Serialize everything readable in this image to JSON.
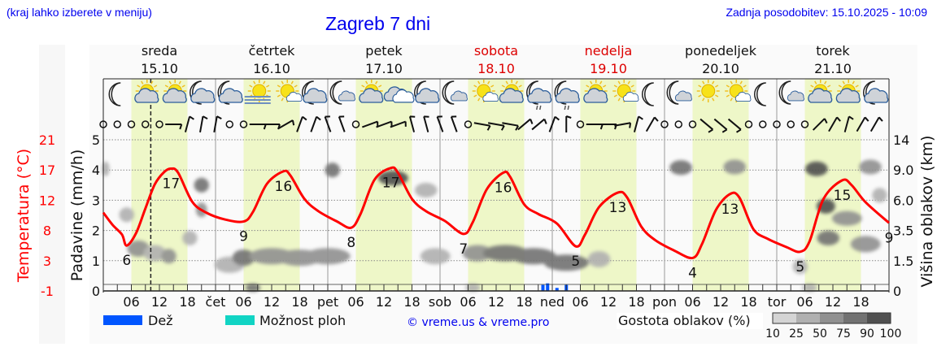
{
  "header": {
    "hint": "(kraj lahko izberete v meniju)",
    "title": "Zagreb 7 dni",
    "updated": "Zadnja posodobitev: 15.10.2025 - 10:09"
  },
  "colors": {
    "temperature": "#ff0000",
    "rain": "#0055ff",
    "showers": "#11d4c4",
    "daylight": "#eef7c8",
    "weekend": "#dd0000",
    "title": "#0000ee"
  },
  "chart_data": {
    "type": "meteogram",
    "days": [
      {
        "name": "sreda",
        "date": "15.10",
        "abbr": "",
        "weekend": false
      },
      {
        "name": "četrtek",
        "date": "16.10",
        "abbr": "čet",
        "weekend": false
      },
      {
        "name": "petek",
        "date": "17.10",
        "abbr": "pet",
        "weekend": false
      },
      {
        "name": "sobota",
        "date": "18.10",
        "abbr": "sob",
        "weekend": true
      },
      {
        "name": "nedelja",
        "date": "19.10",
        "abbr": "ned",
        "weekend": true
      },
      {
        "name": "ponedeljek",
        "date": "20.10",
        "abbr": "pon",
        "weekend": false
      },
      {
        "name": "torek",
        "date": "21.10",
        "abbr": "tor",
        "weekend": false
      }
    ],
    "hour_ticks": [
      "06",
      "12",
      "18"
    ],
    "now": "2025-10-15T10:09",
    "left_axis": {
      "label": "Temperatura (°C)",
      "ticks": [
        "-1",
        "3",
        "8",
        "12",
        "17",
        "21"
      ],
      "range": [
        -1,
        21
      ]
    },
    "precip_axis": {
      "label": "Padavine (mm/h)",
      "ticks": [
        "0",
        "1",
        "2",
        "3",
        "4",
        "5"
      ],
      "range": [
        0,
        5
      ]
    },
    "right_axis": {
      "label": "Višina oblakov (km)",
      "ticks": [
        "0",
        "1.5",
        "3.5",
        "6.0",
        "9.0",
        "14"
      ],
      "values": [
        0,
        1.5,
        3.5,
        6.0,
        9.0,
        14
      ]
    },
    "temperature": [
      [
        "2025-10-15T00:00",
        10.4
      ],
      [
        "2025-10-15T02:00",
        8.6
      ],
      [
        "2025-10-15T04:00",
        7.2
      ],
      [
        "2025-10-15T05:00",
        5.6
      ],
      [
        "2025-10-15T07:00",
        7.4
      ],
      [
        "2025-10-15T09:00",
        11
      ],
      [
        "2025-10-15T11:00",
        14.5
      ],
      [
        "2025-10-15T13:00",
        16.3
      ],
      [
        "2025-10-15T14:30",
        16.8
      ],
      [
        "2025-10-15T16:00",
        16.2
      ],
      [
        "2025-10-15T19:00",
        12
      ],
      [
        "2025-10-15T22:00",
        10.4
      ],
      [
        "2025-10-16T02:00",
        9.4
      ],
      [
        "2025-10-16T06:00",
        9.1
      ],
      [
        "2025-10-16T08:00",
        10.5
      ],
      [
        "2025-10-16T11:00",
        14.6
      ],
      [
        "2025-10-16T14:30",
        16.4
      ],
      [
        "2025-10-16T16:00",
        15.8
      ],
      [
        "2025-10-16T19:00",
        12.4
      ],
      [
        "2025-10-16T22:00",
        10.6
      ],
      [
        "2025-10-17T02:00",
        9.1
      ],
      [
        "2025-10-17T05:00",
        8.2
      ],
      [
        "2025-10-17T07:00",
        10.2
      ],
      [
        "2025-10-17T10:00",
        15.2
      ],
      [
        "2025-10-17T13:30",
        16.9
      ],
      [
        "2025-10-17T15:00",
        16.2
      ],
      [
        "2025-10-17T18:00",
        12.4
      ],
      [
        "2025-10-17T21:00",
        10.6
      ],
      [
        "2025-10-18T01:00",
        9.2
      ],
      [
        "2025-10-18T05:00",
        7.3
      ],
      [
        "2025-10-18T07:00",
        9
      ],
      [
        "2025-10-18T10:00",
        13.8
      ],
      [
        "2025-10-18T13:30",
        16.2
      ],
      [
        "2025-10-18T15:00",
        15.6
      ],
      [
        "2025-10-18T18:00",
        11.6
      ],
      [
        "2025-10-18T21:00",
        10.2
      ],
      [
        "2025-10-19T01:00",
        8.8
      ],
      [
        "2025-10-19T05:00",
        5.5
      ],
      [
        "2025-10-19T07:00",
        7.2
      ],
      [
        "2025-10-19T10:00",
        11.2
      ],
      [
        "2025-10-19T14:00",
        13.3
      ],
      [
        "2025-10-19T16:00",
        12.6
      ],
      [
        "2025-10-19T19:00",
        8.4
      ],
      [
        "2025-10-19T22:00",
        6.4
      ],
      [
        "2025-10-20T02:00",
        4.9
      ],
      [
        "2025-10-20T06:00",
        3.8
      ],
      [
        "2025-10-20T08:00",
        5.8
      ],
      [
        "2025-10-20T11:00",
        10.8
      ],
      [
        "2025-10-20T14:00",
        13.1
      ],
      [
        "2025-10-20T16:00",
        12.6
      ],
      [
        "2025-10-20T19:00",
        8
      ],
      [
        "2025-10-20T22:00",
        6.6
      ],
      [
        "2025-10-21T02:00",
        5.4
      ],
      [
        "2025-10-21T05:00",
        4.7
      ],
      [
        "2025-10-21T07:00",
        6.2
      ],
      [
        "2025-10-21T10:00",
        12.4
      ],
      [
        "2025-10-21T14:00",
        15.1
      ],
      [
        "2025-10-21T16:00",
        14.4
      ],
      [
        "2025-10-21T19:00",
        11.9
      ],
      [
        "2025-10-21T24:00",
        8.9
      ]
    ],
    "temperature_labels": [
      [
        "2025-10-15T05:00",
        "6",
        "below"
      ],
      [
        "2025-10-15T14:30",
        "17",
        "below"
      ],
      [
        "2025-10-16T06:00",
        "9",
        "below"
      ],
      [
        "2025-10-16T14:30",
        "16",
        "below"
      ],
      [
        "2025-10-17T05:00",
        "8",
        "below"
      ],
      [
        "2025-10-17T13:30",
        "17",
        "below"
      ],
      [
        "2025-10-18T05:00",
        "7",
        "below"
      ],
      [
        "2025-10-18T13:30",
        "16",
        "below"
      ],
      [
        "2025-10-19T05:00",
        "5",
        "below"
      ],
      [
        "2025-10-19T14:00",
        "13",
        "below"
      ],
      [
        "2025-10-20T06:00",
        "4",
        "below"
      ],
      [
        "2025-10-20T14:00",
        "13",
        "below"
      ],
      [
        "2025-10-21T05:00",
        "5",
        "below"
      ],
      [
        "2025-10-21T14:00",
        "15",
        "below"
      ],
      [
        "2025-10-21T24:00",
        "9",
        "below"
      ]
    ],
    "precipitation": [
      [
        "2025-10-18T22:00",
        0.2
      ],
      [
        "2025-10-18T23:00",
        0.25
      ],
      [
        "2025-10-19T01:00",
        0.1
      ],
      [
        "2025-10-19T03:00",
        0.2
      ]
    ],
    "clouds": [
      [
        "2025-10-15T00:30",
        9.2,
        1,
        25
      ],
      [
        "2025-10-15T05:00",
        4.8,
        2,
        25
      ],
      [
        "2025-10-15T07:30",
        2.3,
        3,
        50
      ],
      [
        "2025-10-15T11:00",
        2.0,
        3,
        25
      ],
      [
        "2025-10-15T14:00",
        1.8,
        2,
        50
      ],
      [
        "2025-10-15T18:30",
        3.0,
        2,
        25
      ],
      [
        "2025-10-15T21:00",
        7.5,
        2,
        75
      ],
      [
        "2025-10-15T21:00",
        5.2,
        1.5,
        50
      ],
      [
        "2025-10-16T03:00",
        1.3,
        4,
        25
      ],
      [
        "2025-10-16T06:00",
        1.7,
        3,
        75
      ],
      [
        "2025-10-16T08:00",
        0.05,
        2,
        75
      ],
      [
        "2025-10-16T12:00",
        1.8,
        6,
        50
      ],
      [
        "2025-10-16T18:00",
        1.7,
        6,
        50
      ],
      [
        "2025-10-17T00:00",
        1.8,
        6,
        50
      ],
      [
        "2025-10-17T01:00",
        9.0,
        2,
        75
      ],
      [
        "2025-10-17T14:00",
        8.2,
        4,
        90
      ],
      [
        "2025-10-17T21:00",
        7.0,
        3,
        25
      ],
      [
        "2025-10-17T23:00",
        1.8,
        4,
        25
      ],
      [
        "2025-10-18T07:00",
        0.05,
        2,
        25
      ],
      [
        "2025-10-18T08:00",
        2.0,
        4,
        50
      ],
      [
        "2025-10-18T14:00",
        2.0,
        6,
        75
      ],
      [
        "2025-10-18T20:00",
        1.8,
        6,
        75
      ],
      [
        "2025-10-19T03:00",
        1.4,
        6,
        75
      ],
      [
        "2025-10-19T10:00",
        1.6,
        3,
        25
      ],
      [
        "2025-10-20T03:30",
        9.4,
        3,
        75
      ],
      [
        "2025-10-20T15:00",
        9.5,
        3,
        50
      ],
      [
        "2025-10-21T05:00",
        1.2,
        2,
        25
      ],
      [
        "2025-10-21T07:00",
        0.05,
        2,
        25
      ],
      [
        "2025-10-21T08:30",
        9.2,
        3,
        90
      ],
      [
        "2025-10-21T10:30",
        5.5,
        2.5,
        90
      ],
      [
        "2025-10-21T11:00",
        3.0,
        3,
        75
      ],
      [
        "2025-10-21T15:00",
        4.5,
        4,
        50
      ],
      [
        "2025-10-21T19:00",
        2.6,
        4,
        50
      ],
      [
        "2025-10-21T20:00",
        9.5,
        3,
        50
      ],
      [
        "2025-10-21T22:00",
        6.5,
        2,
        25
      ]
    ],
    "weather_icons": [
      "moon",
      "sun-cloud",
      "sun-cloud",
      "moon-cloud",
      "moon-cloud",
      "sun-fog",
      "sun-small-cloud",
      "moon-cloud",
      "moon-small-cloud",
      "sun-cloud",
      "cloud-overcast",
      "moon-cloud",
      "moon-small-cloud",
      "sun-small-cloud",
      "sun-cloud",
      "moon-cloud-rain",
      "moon-cloud-rain",
      "sun-cloud",
      "sun-small-cloud",
      "moon",
      "moon-small-cloud",
      "sun",
      "sun-small-cloud",
      "moon",
      "moon-small-cloud",
      "sun-cloud",
      "sun-cloud",
      "moon-cloud"
    ],
    "wind": [
      "calm",
      "calm",
      "calm",
      "calm",
      "calm",
      90,
      15,
      10,
      10,
      "calm",
      "calm",
      90,
      90,
      60,
      20,
      20,
      340,
      340,
      "calm",
      70,
      70,
      70,
      345,
      345,
      340,
      340,
      "calm",
      100,
      100,
      100,
      50,
      50,
      20,
      0,
      "calm",
      90,
      90,
      80,
      15,
      30,
      "calm",
      "calm",
      "calm",
      130,
      130,
      130,
      "calm",
      "calm",
      "calm",
      "calm",
      "calm",
      45,
      30,
      15,
      30,
      30
    ]
  },
  "legend": {
    "rain": "Dež",
    "showers": "Možnost ploh",
    "credit": "© vreme.us & vreme.pro",
    "cloud_density": "Gostota oblakov (%)",
    "cloud_scale": [
      "10",
      "25",
      "50",
      "75",
      "90",
      "100"
    ],
    "cloud_scale_colors": [
      "#d4d4d4",
      "#b0b0b0",
      "#909090",
      "#727272",
      "#505050"
    ]
  }
}
